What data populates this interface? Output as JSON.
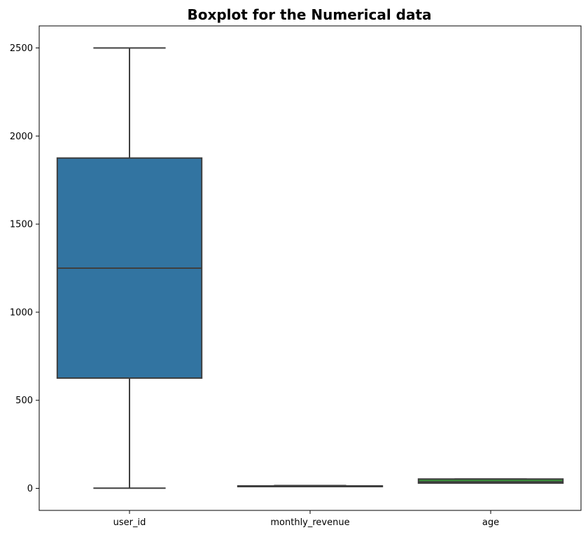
{
  "chart_data": {
    "type": "box",
    "title": "Boxplot for the Numerical data",
    "xlabel": "",
    "ylabel": "",
    "categories": [
      "user_id",
      "monthly_revenue",
      "age"
    ],
    "boxes": [
      {
        "name": "user_id",
        "whisker_low": 1,
        "q1": 626,
        "median": 1250,
        "q3": 1875,
        "whisker_high": 2500,
        "color": "#3274a1"
      },
      {
        "name": "monthly_revenue",
        "whisker_low": 10,
        "q1": 12,
        "median": 13,
        "q3": 14,
        "whisker_high": 16,
        "color": "#e1812c"
      },
      {
        "name": "age",
        "whisker_low": 30,
        "q1": 30,
        "median": 37,
        "q3": 53,
        "whisker_high": 53,
        "color": "#3a923a"
      }
    ],
    "yticks": [
      0,
      500,
      1000,
      1500,
      2000,
      2500
    ],
    "ylim": [
      -125,
      2625
    ],
    "grid": false,
    "legend": "none",
    "colors": {
      "line": "#3f3f3f",
      "axis": "#000000"
    }
  }
}
